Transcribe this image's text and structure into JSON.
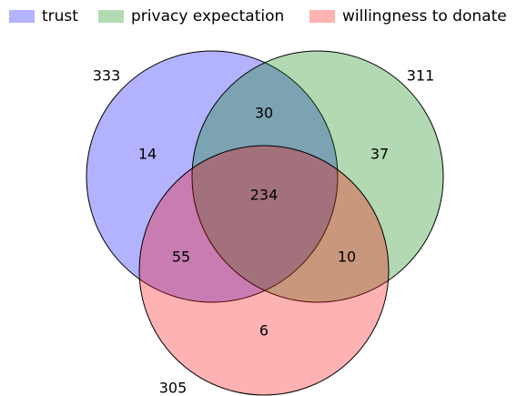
{
  "legend": [
    {
      "label": "trust",
      "color": "#b3b3ff"
    },
    {
      "label": "privacy expectation",
      "color": "#b3dbb3"
    },
    {
      "label": "willingness to donate",
      "color": "#ffb3b3"
    }
  ],
  "sets": {
    "trust": {
      "total": "333",
      "color": "#0000ff"
    },
    "privacy": {
      "total": "311",
      "color": "#008000"
    },
    "donate": {
      "total": "305",
      "color": "#ff0000"
    }
  },
  "regions": {
    "trust_only": "14",
    "privacy_only": "37",
    "donate_only": "6",
    "trust_privacy": "30",
    "trust_donate": "55",
    "privacy_donate": "10",
    "all_three": "234"
  }
}
